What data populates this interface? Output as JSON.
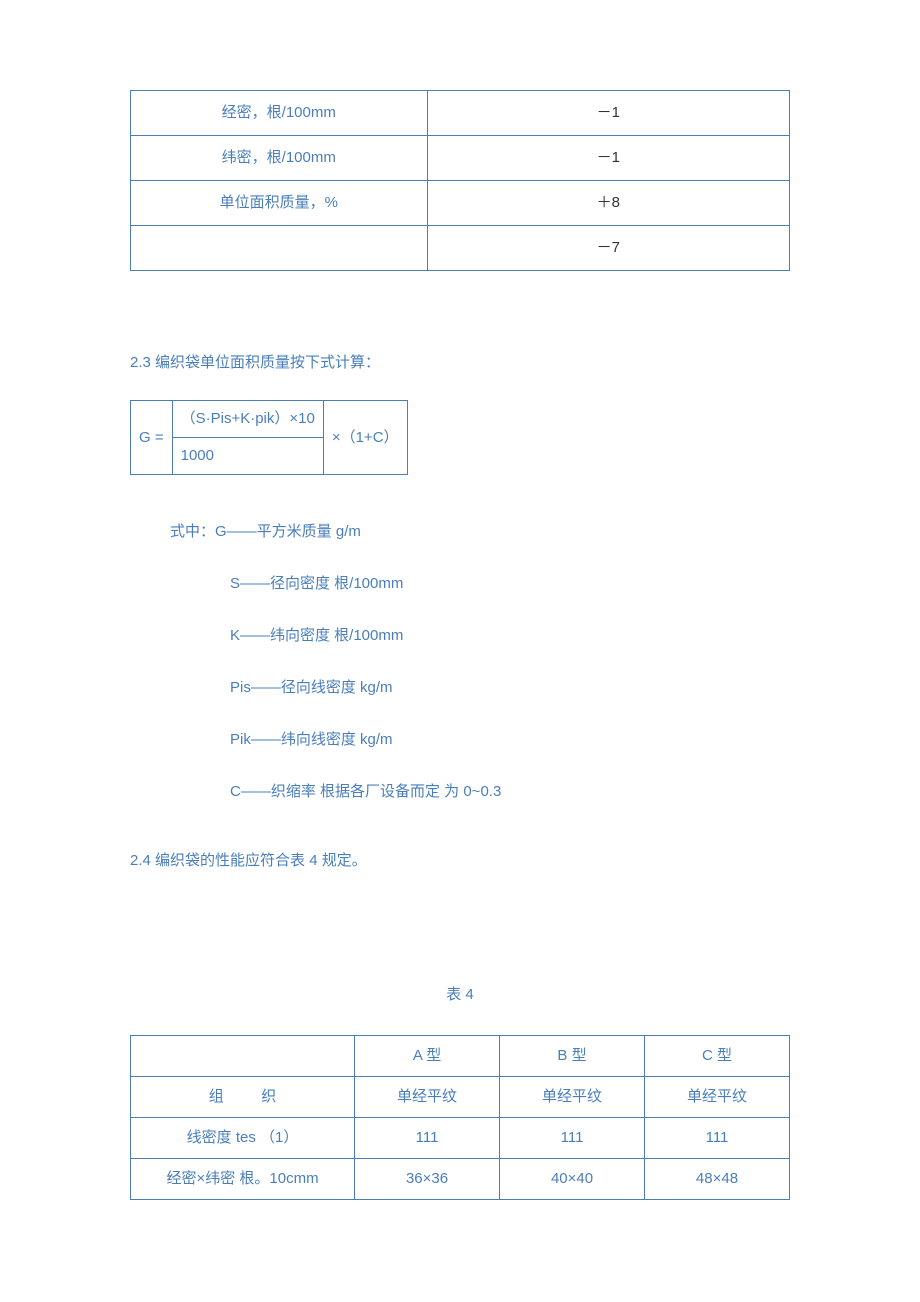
{
  "table1": {
    "rows": [
      {
        "left": "经密，根/100mm",
        "right": "－1"
      },
      {
        "left": "纬密，根/100mm",
        "right": "－1"
      },
      {
        "left": "单位面积质量，%",
        "right": "＋8"
      },
      {
        "left": "",
        "right": "－7"
      }
    ]
  },
  "section23": "2.3  编织袋单位面积质量按下式计算：",
  "formula": {
    "g_eq": "G =",
    "numerator": "（S·Pis+K·pik）×10",
    "denom": "1000",
    "mult": "×（1+C）"
  },
  "legend": {
    "l1_prefix": "式中：",
    "l1": "G——平方米质量  g/m",
    "l2": "S——径向密度    根/100mm",
    "l3": "K——纬向密度    根/100mm",
    "l4": "Pis——径向线密度  kg/m",
    "l5": "Pik——纬向线密度  kg/m",
    "l6": "C——织缩率     根据各厂设备而定    为 0~0.3"
  },
  "section24": "2.4  编织袋的性能应符合表 4 规定。",
  "table4": {
    "caption": "表 4",
    "header": [
      "",
      "A 型",
      "B 型",
      "C 型"
    ],
    "rows": [
      {
        "label_a": "组",
        "label_b": "织",
        "a": "单经平纹",
        "b": "单经平纹",
        "c": "单经平纹"
      },
      {
        "label": "线密度 tes  （1）",
        "a": "111",
        "b": "111",
        "c": "111"
      },
      {
        "label": "经密×纬密   根。10cmm",
        "a": "36×36",
        "b": "40×40",
        "c": "48×48"
      }
    ]
  }
}
